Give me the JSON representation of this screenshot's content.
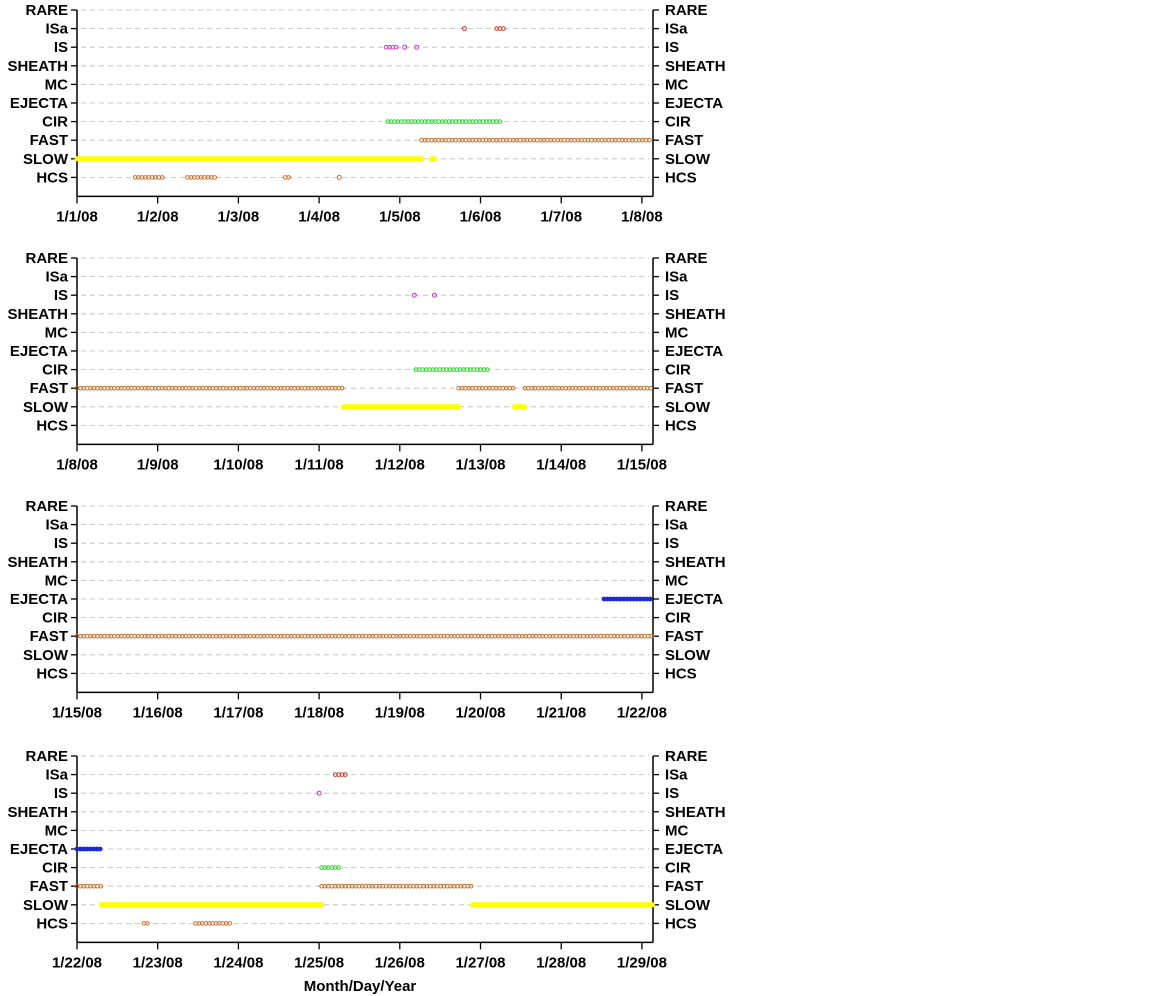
{
  "chart_data": {
    "type": "scatter",
    "xlabel": "Month/Day/Year",
    "categories": [
      "RARE",
      "ISa",
      "IS",
      "SHEATH",
      "MC",
      "EJECTA",
      "CIR",
      "FAST",
      "SLOW",
      "HCS"
    ],
    "colors": {
      "ISa": "#c0392b",
      "IS": "#cc33cc",
      "CIR": "#22dd22",
      "FAST": "#c8702a",
      "SLOW": "#ffff00",
      "HCS": "#c8702a",
      "EJECTA": "#1a2adb",
      "grid": "#bbbbbb"
    },
    "grid": "dashed-horizontal",
    "panels": [
      {
        "xticks": [
          "1/1/08",
          "1/2/08",
          "1/3/08",
          "1/4/08",
          "1/5/08",
          "1/6/08",
          "1/7/08",
          "1/8/08"
        ],
        "intervals": [
          {
            "cat": "SLOW",
            "start": 0.0,
            "end": 4.27,
            "style": "filled"
          },
          {
            "cat": "SLOW",
            "start": 4.39,
            "end": 4.43,
            "style": "filled"
          },
          {
            "cat": "FAST",
            "start": 4.27,
            "end": 7.13,
            "style": "open"
          },
          {
            "cat": "CIR",
            "start": 3.85,
            "end": 5.28,
            "style": "open"
          },
          {
            "cat": "IS",
            "start": 3.83,
            "end": 3.98,
            "style": "open"
          },
          {
            "cat": "IS",
            "start": 4.05,
            "end": 4.07,
            "style": "open"
          },
          {
            "cat": "IS",
            "start": 4.2,
            "end": 4.22,
            "style": "open"
          },
          {
            "cat": "ISa",
            "start": 4.79,
            "end": 4.81,
            "style": "open"
          },
          {
            "cat": "ISa",
            "start": 5.2,
            "end": 5.3,
            "style": "open"
          },
          {
            "cat": "HCS",
            "start": 0.72,
            "end": 1.08,
            "style": "open"
          },
          {
            "cat": "HCS",
            "start": 1.37,
            "end": 1.72,
            "style": "open"
          },
          {
            "cat": "HCS",
            "start": 2.58,
            "end": 2.63,
            "style": "open"
          },
          {
            "cat": "HCS",
            "start": 3.24,
            "end": 3.26,
            "style": "open"
          }
        ]
      },
      {
        "xticks": [
          "1/8/08",
          "1/9/08",
          "1/10/08",
          "1/11/08",
          "1/12/08",
          "1/13/08",
          "1/14/08",
          "1/15/08"
        ],
        "intervals": [
          {
            "cat": "FAST",
            "start": 0.0,
            "end": 3.3,
            "style": "open"
          },
          {
            "cat": "FAST",
            "start": 4.73,
            "end": 5.42,
            "style": "open"
          },
          {
            "cat": "FAST",
            "start": 5.55,
            "end": 7.13,
            "style": "open"
          },
          {
            "cat": "SLOW",
            "start": 3.3,
            "end": 4.73,
            "style": "filled"
          },
          {
            "cat": "SLOW",
            "start": 5.42,
            "end": 5.55,
            "style": "filled"
          },
          {
            "cat": "CIR",
            "start": 4.2,
            "end": 5.1,
            "style": "open"
          },
          {
            "cat": "IS",
            "start": 4.17,
            "end": 4.19,
            "style": "open"
          },
          {
            "cat": "IS",
            "start": 4.42,
            "end": 4.44,
            "style": "open"
          }
        ]
      },
      {
        "xticks": [
          "1/15/08",
          "1/16/08",
          "1/17/08",
          "1/18/08",
          "1/19/08",
          "1/20/08",
          "1/21/08",
          "1/22/08"
        ],
        "intervals": [
          {
            "cat": "FAST",
            "start": 0.0,
            "end": 7.13,
            "style": "open"
          },
          {
            "cat": "EJECTA",
            "start": 6.53,
            "end": 7.13,
            "style": "filled-dot"
          }
        ]
      },
      {
        "xticks": [
          "1/22/08",
          "1/23/08",
          "1/24/08",
          "1/25/08",
          "1/26/08",
          "1/27/08",
          "1/28/08",
          "1/29/08"
        ],
        "intervals": [
          {
            "cat": "EJECTA",
            "start": 0.0,
            "end": 0.3,
            "style": "filled-dot"
          },
          {
            "cat": "FAST",
            "start": 0.0,
            "end": 0.3,
            "style": "open"
          },
          {
            "cat": "FAST",
            "start": 3.03,
            "end": 4.9,
            "style": "open"
          },
          {
            "cat": "SLOW",
            "start": 0.3,
            "end": 3.03,
            "style": "filled"
          },
          {
            "cat": "SLOW",
            "start": 4.9,
            "end": 7.13,
            "style": "filled"
          },
          {
            "cat": "CIR",
            "start": 3.03,
            "end": 3.28,
            "style": "open"
          },
          {
            "cat": "IS",
            "start": 2.99,
            "end": 3.01,
            "style": "open"
          },
          {
            "cat": "ISa",
            "start": 3.2,
            "end": 3.33,
            "style": "open"
          },
          {
            "cat": "HCS",
            "start": 0.83,
            "end": 0.9,
            "style": "open"
          },
          {
            "cat": "HCS",
            "start": 1.47,
            "end": 1.93,
            "style": "open"
          }
        ]
      }
    ]
  }
}
